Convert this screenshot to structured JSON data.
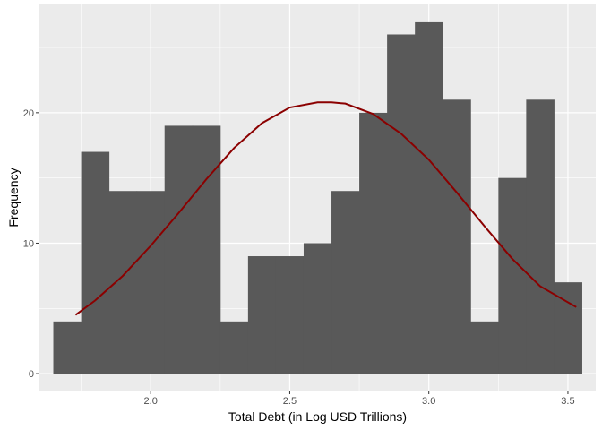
{
  "chart_data": {
    "type": "bar",
    "subtype": "histogram",
    "xlabel": "Total Debt (in Log USD Trillions)",
    "ylabel": "Frequency",
    "xlim": [
      1.6,
      3.6
    ],
    "ylim": [
      -1.3,
      28.3
    ],
    "x_ticks": [
      2.0,
      2.5,
      3.0,
      3.5
    ],
    "x_tick_labels": [
      "2.0",
      "2.5",
      "3.0",
      "3.5"
    ],
    "y_ticks": [
      0,
      10,
      20
    ],
    "y_tick_labels": [
      "0",
      "10",
      "20"
    ],
    "bin_width": 0.1,
    "bins": [
      {
        "x0": 1.65,
        "x1": 1.75,
        "count": 4
      },
      {
        "x0": 1.75,
        "x1": 1.85,
        "count": 17
      },
      {
        "x0": 1.85,
        "x1": 1.95,
        "count": 14
      },
      {
        "x0": 1.95,
        "x1": 2.05,
        "count": 14
      },
      {
        "x0": 2.05,
        "x1": 2.15,
        "count": 19
      },
      {
        "x0": 2.15,
        "x1": 2.25,
        "count": 19
      },
      {
        "x0": 2.25,
        "x1": 2.35,
        "count": 4
      },
      {
        "x0": 2.35,
        "x1": 2.45,
        "count": 9
      },
      {
        "x0": 2.45,
        "x1": 2.55,
        "count": 9
      },
      {
        "x0": 2.55,
        "x1": 2.65,
        "count": 10
      },
      {
        "x0": 2.65,
        "x1": 2.75,
        "count": 14
      },
      {
        "x0": 2.75,
        "x1": 2.85,
        "count": 20
      },
      {
        "x0": 2.85,
        "x1": 2.95,
        "count": 26
      },
      {
        "x0": 2.95,
        "x1": 3.05,
        "count": 27
      },
      {
        "x0": 3.05,
        "x1": 3.15,
        "count": 21
      },
      {
        "x0": 3.15,
        "x1": 3.25,
        "count": 4
      },
      {
        "x0": 3.25,
        "x1": 3.35,
        "count": 15
      },
      {
        "x0": 3.35,
        "x1": 3.45,
        "count": 21
      },
      {
        "x0": 3.45,
        "x1": 3.55,
        "count": 7
      }
    ],
    "curve": {
      "type": "normal-density-overlay",
      "color": "#8b0000",
      "x": [
        1.73,
        1.8,
        1.9,
        2.0,
        2.1,
        2.2,
        2.3,
        2.4,
        2.5,
        2.6,
        2.65,
        2.7,
        2.8,
        2.9,
        3.0,
        3.1,
        3.2,
        3.3,
        3.4,
        3.53
      ],
      "y": [
        4.5,
        5.6,
        7.5,
        9.8,
        12.3,
        14.9,
        17.3,
        19.2,
        20.4,
        20.8,
        20.8,
        20.7,
        19.9,
        18.4,
        16.4,
        13.9,
        11.3,
        8.8,
        6.7,
        5.1
      ]
    },
    "colors": {
      "panel_background": "#ebebeb",
      "grid": "#ffffff",
      "bar_fill": "#595959"
    },
    "grid": true,
    "legend": "none"
  }
}
